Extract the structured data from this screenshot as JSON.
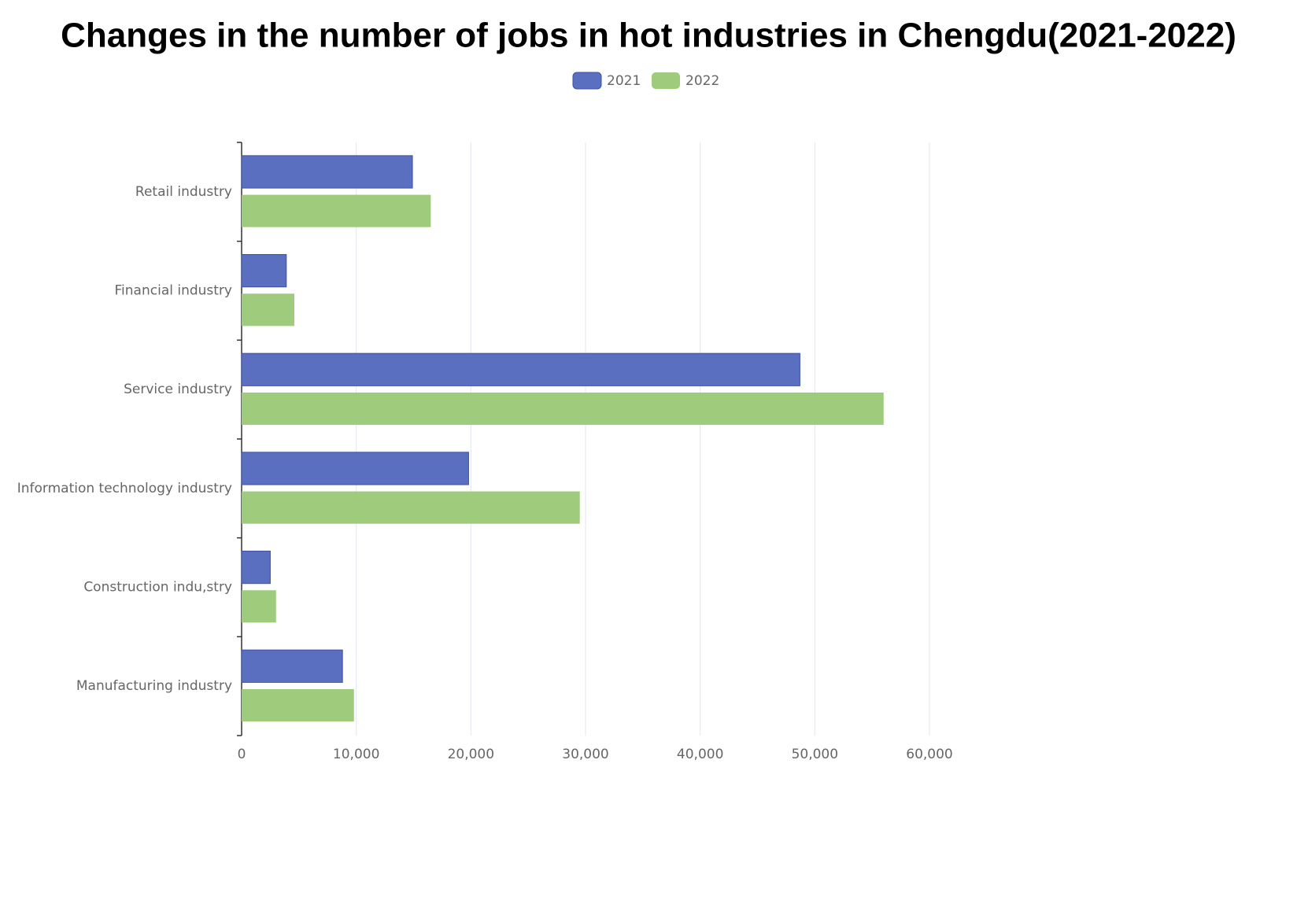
{
  "chart_data": {
    "type": "bar",
    "orientation": "horizontal",
    "title": "Changes in the number of jobs in hot industries in Chengdu(2021-2022)",
    "categories": [
      "Retail industry",
      "Financial industry",
      "Service industry",
      "Information technology industry",
      "Construction indu,stry",
      "Manufacturing industry"
    ],
    "series": [
      {
        "name": "2021",
        "color": "#5a6fc0",
        "values": [
          14900,
          3900,
          48700,
          19800,
          2500,
          8800
        ]
      },
      {
        "name": "2022",
        "color": "#9ecb7c",
        "values": [
          16500,
          4600,
          56000,
          29500,
          3000,
          9800
        ]
      }
    ],
    "xlim": [
      0,
      60000
    ],
    "xticks": [
      0,
      {
        "value": 10000,
        "label": "10,000"
      },
      {
        "value": 20000,
        "label": "20,000"
      },
      {
        "value": 30000,
        "label": "30,000"
      },
      {
        "value": 40000,
        "label": "40,000"
      },
      {
        "value": 50000,
        "label": "50,000"
      },
      {
        "value": 60000,
        "label": "60,000"
      }
    ],
    "grid": true,
    "legend": "top"
  }
}
